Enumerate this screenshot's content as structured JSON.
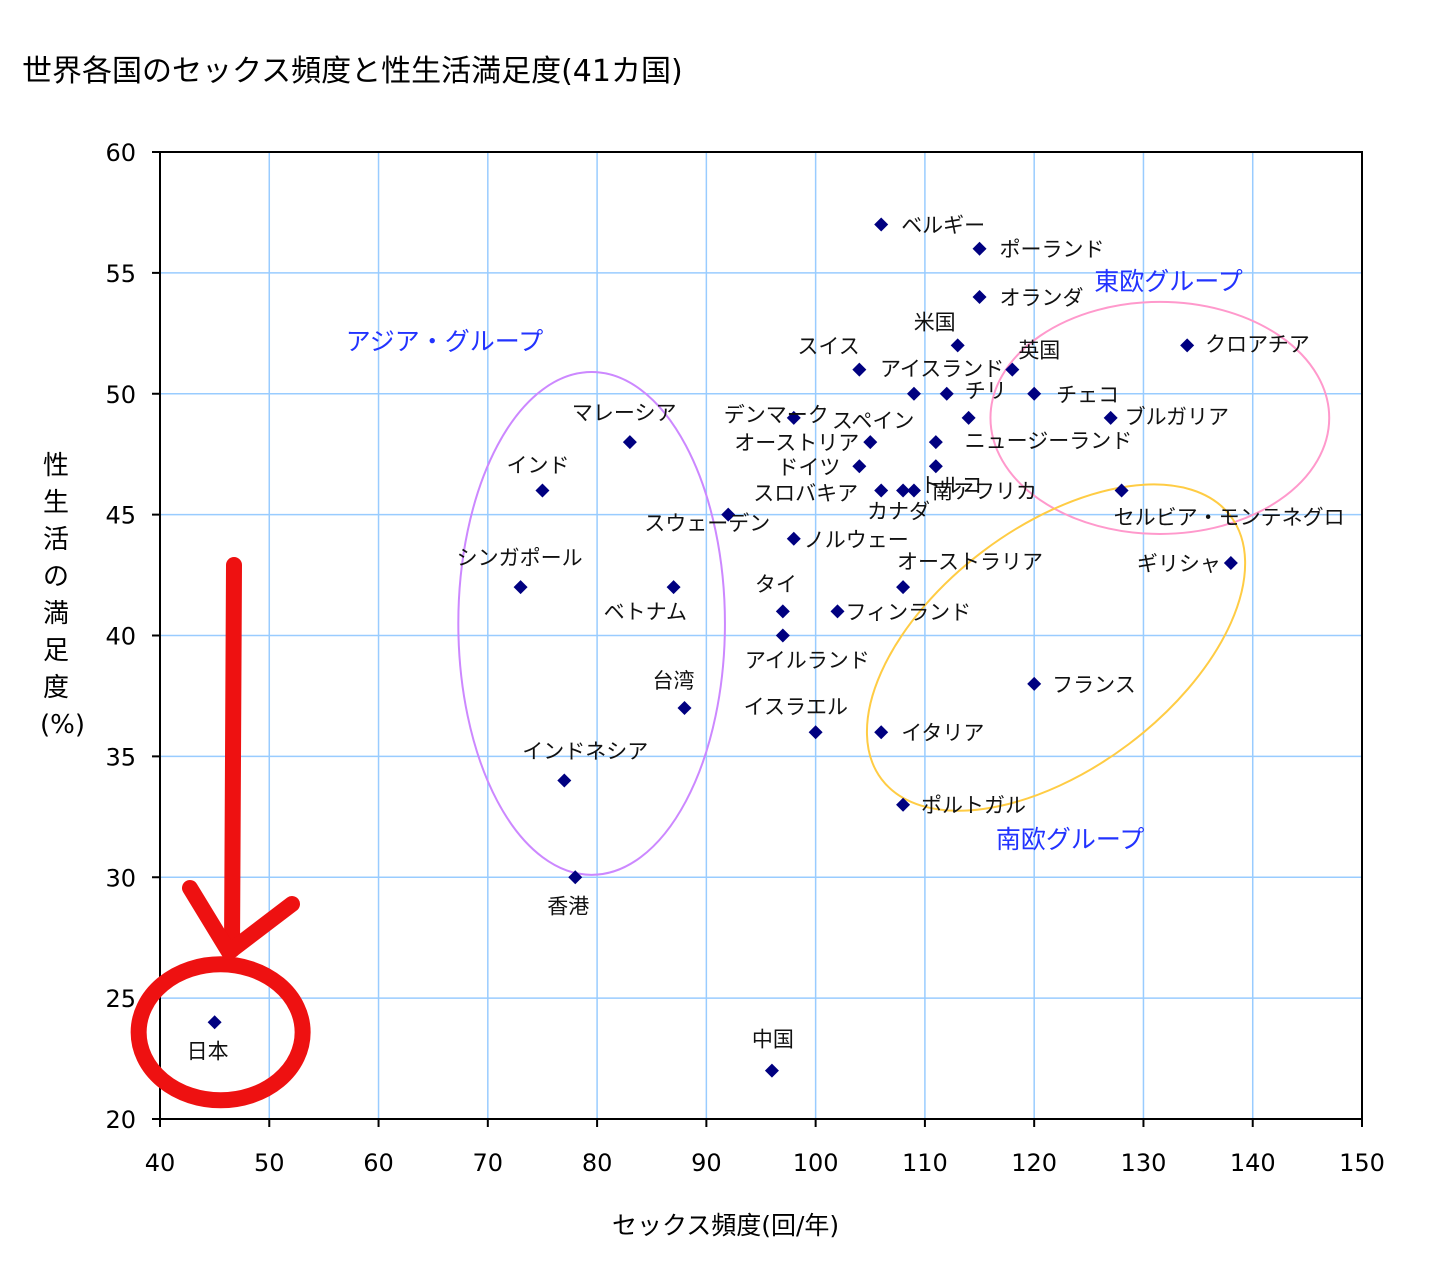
{
  "chart_data": {
    "type": "scatter",
    "title": "世界各国のセックス頻度と性生活満足度(41カ国)",
    "xlabel": "セックス頻度(回/年)",
    "ylabel": "性生活の満足度(%)",
    "xlim": [
      40,
      150
    ],
    "ylim": [
      20,
      60
    ],
    "xticks": [
      40,
      50,
      60,
      70,
      80,
      90,
      100,
      110,
      120,
      130,
      140,
      150
    ],
    "yticks": [
      20,
      25,
      30,
      35,
      40,
      45,
      50,
      55,
      60
    ],
    "grid": true,
    "marker_color": "#000080",
    "grid_color": "#99ccff",
    "points": [
      {
        "label": "日本",
        "x": 45,
        "y": 24
      },
      {
        "label": "中国",
        "x": 96,
        "y": 22
      },
      {
        "label": "香港",
        "x": 78,
        "y": 30
      },
      {
        "label": "インドネシア",
        "x": 77,
        "y": 34
      },
      {
        "label": "台湾",
        "x": 88,
        "y": 37
      },
      {
        "label": "ベトナム",
        "x": 87,
        "y": 42
      },
      {
        "label": "シンガポール",
        "x": 73,
        "y": 42
      },
      {
        "label": "インド",
        "x": 75,
        "y": 46
      },
      {
        "label": "マレーシア",
        "x": 83,
        "y": 48
      },
      {
        "label": "スウェーデン",
        "x": 92,
        "y": 45
      },
      {
        "label": "ノルウェー",
        "x": 98,
        "y": 44
      },
      {
        "label": "タイ",
        "x": 97,
        "y": 41
      },
      {
        "label": "アイルランド",
        "x": 97,
        "y": 40
      },
      {
        "label": "フィンランド",
        "x": 102,
        "y": 41
      },
      {
        "label": "イスラエル",
        "x": 100,
        "y": 36
      },
      {
        "label": "デンマーク",
        "x": 98,
        "y": 49
      },
      {
        "label": "スイス",
        "x": 104,
        "y": 51
      },
      {
        "label": "オーストリア",
        "x": 105,
        "y": 48
      },
      {
        "label": "ドイツ",
        "x": 104,
        "y": 47
      },
      {
        "label": "スロバキア",
        "x": 106,
        "y": 46
      },
      {
        "label": "カナダ",
        "x": 108,
        "y": 46
      },
      {
        "label": "南アフリカ",
        "x": 109,
        "y": 46
      },
      {
        "label": "スペイン",
        "x": 111,
        "y": 48
      },
      {
        "label": "トルコ",
        "x": 111,
        "y": 47
      },
      {
        "label": "オーストラリア",
        "x": 108,
        "y": 42
      },
      {
        "label": "アイスランド",
        "x": 109,
        "y": 50
      },
      {
        "label": "チリ",
        "x": 112,
        "y": 50
      },
      {
        "label": "ニュージーランド",
        "x": 114,
        "y": 49
      },
      {
        "label": "米国",
        "x": 113,
        "y": 52
      },
      {
        "label": "英国",
        "x": 118,
        "y": 51
      },
      {
        "label": "チェコ",
        "x": 120,
        "y": 50
      },
      {
        "label": "オランダ",
        "x": 115,
        "y": 54
      },
      {
        "label": "ポーランド",
        "x": 115,
        "y": 56
      },
      {
        "label": "ベルギー",
        "x": 106,
        "y": 57
      },
      {
        "label": "クロアチア",
        "x": 134,
        "y": 52
      },
      {
        "label": "ブルガリア",
        "x": 127,
        "y": 49
      },
      {
        "label": "セルビア・モンテネグロ",
        "x": 128,
        "y": 46
      },
      {
        "label": "ギリシャ",
        "x": 138,
        "y": 43
      },
      {
        "label": "フランス",
        "x": 120,
        "y": 38
      },
      {
        "label": "イタリア",
        "x": 106,
        "y": 36
      },
      {
        "label": "ポルトガル",
        "x": 108,
        "y": 33
      }
    ],
    "groups": [
      {
        "label": "アジア・グループ",
        "color": "#cc88ff"
      },
      {
        "label": "東欧グループ",
        "color": "#ff99cc"
      },
      {
        "label": "南欧グループ",
        "color": "#ffcc44"
      }
    ],
    "highlight": {
      "target": "日本",
      "color": "#ee1111"
    }
  }
}
